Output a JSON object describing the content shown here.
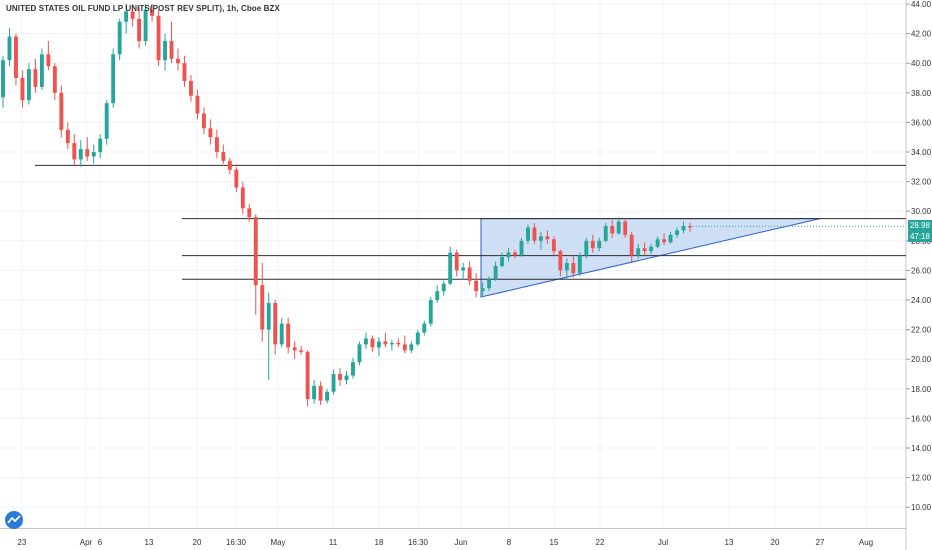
{
  "header": {
    "title": "UNITED STATES OIL FUND LP UNITS(POST REV SPLIT), 1h, Cboe BZX"
  },
  "price_badges": [
    {
      "value": "28.98",
      "color": "#26a69a"
    },
    {
      "value": "47:18",
      "color": "#26a69a"
    }
  ],
  "colors": {
    "up_candle": "#26a69a",
    "down_candle": "#ef5350",
    "line": "#2c2c2c",
    "triangle_fill": "#c6d9f5",
    "triangle_stroke": "#2a5fd1",
    "grid": "#f0f3fa"
  },
  "chart_data": {
    "type": "candlestick",
    "y_axis": {
      "min": 9.0,
      "max": 44.0,
      "ticks": [
        "10.00",
        "12.00",
        "14.00",
        "16.00",
        "18.00",
        "20.00",
        "22.00",
        "24.00",
        "26.00",
        "28.00",
        "30.00",
        "32.00",
        "34.00",
        "36.00",
        "38.00",
        "40.00",
        "42.00",
        "44.00"
      ]
    },
    "x_axis": {
      "ticks": [
        "23",
        "Apr",
        "6",
        "13",
        "20",
        "16:30",
        "May",
        "11",
        "18",
        "16:30",
        "Jun",
        "8",
        "15",
        "22",
        "Jul",
        "13",
        "20",
        "27",
        "Aug"
      ]
    },
    "horizontal_lines": [
      33.1,
      29.5,
      27.0,
      25.4
    ],
    "triangle": {
      "top": 29.5,
      "bottom": 24.2,
      "apex_price": 29.5
    },
    "candles": [
      [
        37.7,
        40.5,
        37.0,
        40.2
      ],
      [
        40.2,
        42.4,
        39.8,
        41.8
      ],
      [
        41.8,
        42.0,
        38.5,
        39.0
      ],
      [
        39.0,
        39.5,
        37.0,
        37.5
      ],
      [
        37.5,
        40.0,
        37.2,
        39.6
      ],
      [
        39.6,
        40.3,
        38.0,
        38.4
      ],
      [
        38.4,
        41.0,
        38.2,
        40.6
      ],
      [
        40.6,
        41.5,
        39.5,
        39.8
      ],
      [
        39.8,
        40.0,
        37.5,
        38.0
      ],
      [
        38.0,
        38.5,
        35.0,
        35.5
      ],
      [
        35.5,
        36.0,
        34.2,
        34.6
      ],
      [
        34.6,
        35.2,
        33.1,
        33.5
      ],
      [
        33.5,
        34.8,
        33.0,
        34.2
      ],
      [
        34.2,
        35.0,
        33.4,
        33.7
      ],
      [
        33.7,
        34.5,
        33.2,
        34.0
      ],
      [
        34.0,
        35.2,
        33.6,
        34.9
      ],
      [
        34.9,
        37.5,
        34.5,
        37.3
      ],
      [
        37.3,
        41.0,
        37.0,
        40.6
      ],
      [
        40.6,
        43.0,
        40.2,
        42.8
      ],
      [
        42.8,
        44.0,
        42.0,
        43.5
      ],
      [
        43.5,
        44.0,
        42.5,
        43.0
      ],
      [
        43.0,
        43.8,
        41.0,
        41.5
      ],
      [
        41.5,
        44.0,
        41.2,
        43.6
      ],
      [
        43.6,
        44.0,
        42.8,
        43.2
      ],
      [
        43.2,
        43.6,
        39.8,
        40.2
      ],
      [
        40.2,
        42.0,
        39.5,
        41.5
      ],
      [
        41.5,
        42.8,
        40.0,
        40.3
      ],
      [
        40.3,
        41.0,
        39.5,
        40.0
      ],
      [
        40.0,
        40.5,
        38.4,
        38.8
      ],
      [
        38.8,
        39.2,
        37.4,
        37.8
      ],
      [
        37.8,
        38.2,
        36.2,
        36.6
      ],
      [
        36.6,
        37.0,
        35.2,
        35.6
      ],
      [
        35.6,
        36.2,
        34.5,
        35.0
      ],
      [
        35.0,
        35.5,
        33.6,
        34.0
      ],
      [
        34.0,
        34.5,
        33.2,
        33.4
      ],
      [
        33.4,
        33.6,
        32.5,
        32.8
      ],
      [
        32.8,
        33.0,
        31.3,
        31.6
      ],
      [
        31.6,
        32.0,
        29.8,
        30.2
      ],
      [
        30.2,
        30.5,
        29.3,
        29.6
      ],
      [
        29.6,
        29.8,
        23.0,
        25.0
      ],
      [
        25.0,
        26.5,
        21.2,
        22.0
      ],
      [
        22.0,
        24.5,
        18.6,
        23.8
      ],
      [
        23.8,
        24.0,
        20.3,
        21.0
      ],
      [
        21.0,
        22.8,
        20.8,
        22.4
      ],
      [
        22.4,
        22.8,
        20.4,
        20.8
      ],
      [
        20.8,
        21.2,
        20.0,
        20.6
      ],
      [
        20.6,
        20.9,
        20.3,
        20.5
      ],
      [
        20.5,
        20.6,
        16.8,
        17.3
      ],
      [
        17.3,
        18.6,
        17.0,
        18.2
      ],
      [
        18.2,
        18.5,
        16.9,
        17.2
      ],
      [
        17.2,
        18.0,
        17.0,
        17.8
      ],
      [
        17.8,
        19.3,
        17.6,
        19.0
      ],
      [
        19.0,
        19.4,
        18.2,
        18.6
      ],
      [
        18.6,
        19.2,
        18.3,
        18.9
      ],
      [
        18.9,
        20.1,
        18.7,
        19.8
      ],
      [
        19.8,
        21.2,
        19.6,
        21.0
      ],
      [
        21.0,
        21.8,
        20.7,
        21.4
      ],
      [
        21.4,
        21.6,
        20.5,
        20.8
      ],
      [
        20.8,
        21.5,
        20.2,
        21.2
      ],
      [
        21.2,
        21.8,
        20.8,
        21.0
      ],
      [
        21.0,
        21.3,
        20.6,
        21.1
      ],
      [
        21.1,
        21.4,
        20.8,
        21.0
      ],
      [
        21.0,
        21.6,
        20.4,
        20.6
      ],
      [
        20.6,
        21.2,
        20.4,
        21.0
      ],
      [
        21.0,
        22.0,
        20.9,
        21.8
      ],
      [
        21.8,
        22.6,
        21.6,
        22.4
      ],
      [
        22.4,
        24.2,
        22.2,
        24.0
      ],
      [
        24.0,
        25.0,
        23.8,
        24.6
      ],
      [
        24.6,
        25.3,
        24.3,
        25.1
      ],
      [
        25.1,
        27.6,
        25.0,
        27.2
      ],
      [
        27.2,
        27.4,
        25.6,
        26.0
      ],
      [
        26.0,
        26.5,
        25.4,
        26.2
      ],
      [
        26.2,
        26.6,
        25.0,
        25.3
      ],
      [
        25.3,
        25.8,
        24.2,
        24.6
      ],
      [
        24.6,
        25.2,
        24.2,
        24.8
      ],
      [
        24.8,
        25.6,
        24.6,
        25.4
      ],
      [
        25.4,
        26.6,
        25.3,
        26.3
      ],
      [
        26.3,
        27.2,
        26.2,
        26.9
      ],
      [
        26.9,
        27.5,
        26.6,
        27.2
      ],
      [
        27.2,
        27.4,
        26.8,
        27.0
      ],
      [
        27.0,
        28.2,
        26.9,
        28.0
      ],
      [
        28.0,
        29.1,
        27.8,
        28.9
      ],
      [
        28.9,
        29.2,
        27.8,
        28.0
      ],
      [
        28.0,
        28.6,
        27.4,
        28.3
      ],
      [
        28.3,
        28.7,
        27.8,
        28.1
      ],
      [
        28.1,
        28.3,
        27.0,
        27.3
      ],
      [
        27.3,
        27.4,
        25.6,
        26.0
      ],
      [
        26.0,
        26.8,
        25.4,
        26.5
      ],
      [
        26.5,
        27.0,
        25.5,
        25.8
      ],
      [
        25.8,
        27.2,
        25.6,
        27.0
      ],
      [
        27.0,
        28.2,
        26.8,
        28.0
      ],
      [
        28.0,
        28.4,
        27.2,
        27.5
      ],
      [
        27.5,
        28.2,
        27.3,
        28.0
      ],
      [
        28.0,
        29.2,
        27.9,
        29.0
      ],
      [
        29.0,
        29.4,
        28.2,
        28.5
      ],
      [
        28.5,
        29.6,
        28.4,
        29.3
      ],
      [
        29.3,
        29.5,
        28.2,
        28.4
      ],
      [
        28.4,
        28.6,
        26.6,
        27.0
      ],
      [
        27.0,
        27.8,
        26.8,
        27.5
      ],
      [
        27.5,
        27.9,
        27.0,
        27.3
      ],
      [
        27.3,
        27.8,
        27.1,
        27.6
      ],
      [
        27.6,
        28.3,
        27.5,
        28.1
      ],
      [
        28.1,
        28.5,
        27.7,
        27.9
      ],
      [
        27.9,
        28.6,
        27.8,
        28.4
      ],
      [
        28.4,
        28.9,
        28.2,
        28.7
      ],
      [
        28.7,
        29.3,
        28.5,
        29.0
      ],
      [
        29.0,
        29.2,
        28.6,
        28.9
      ]
    ]
  }
}
